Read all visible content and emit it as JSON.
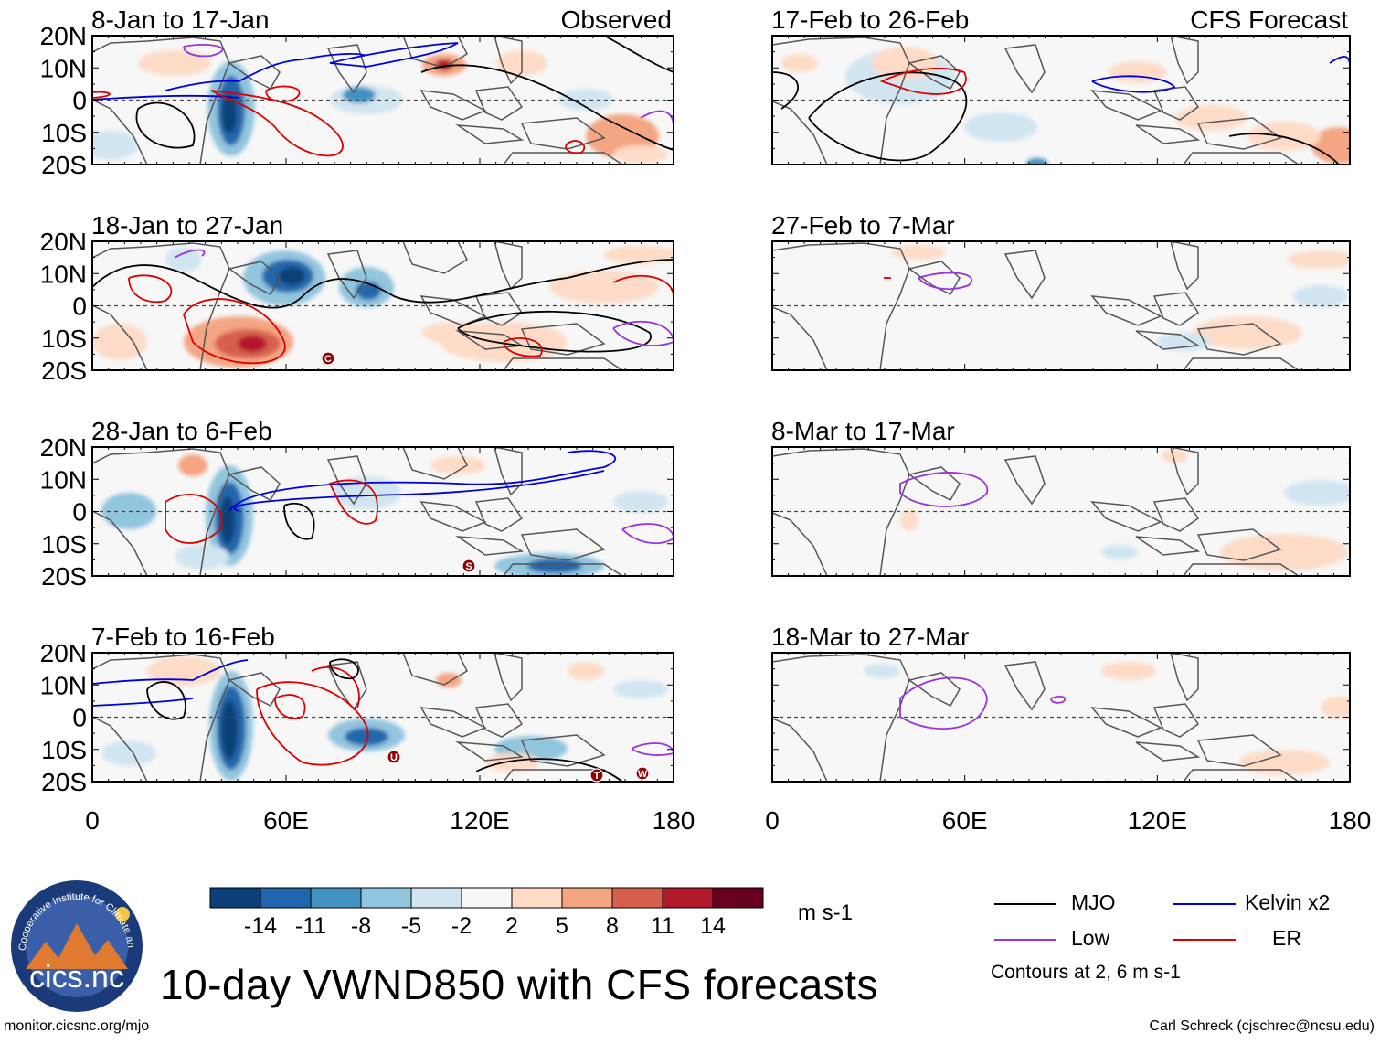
{
  "header": {
    "left_label": "Observed",
    "right_label": "CFS Forecast"
  },
  "panels": {
    "observed": [
      {
        "period": "8-Jan to 17-Jan"
      },
      {
        "period": "18-Jan to 27-Jan"
      },
      {
        "period": "28-Jan to 6-Feb"
      },
      {
        "period": "7-Feb to 16-Feb"
      }
    ],
    "forecast": [
      {
        "period": "17-Feb to 26-Feb"
      },
      {
        "period": "27-Feb to 7-Mar"
      },
      {
        "period": "8-Mar to 17-Mar"
      },
      {
        "period": "18-Mar to 27-Mar"
      }
    ]
  },
  "axes": {
    "lat_labels": [
      "20N",
      "10N",
      "0",
      "10S",
      "20S"
    ],
    "lon_labels": [
      "0",
      "60E",
      "120E",
      "180"
    ]
  },
  "storm_markers": [
    {
      "panel": 1,
      "label": "C"
    },
    {
      "panel": 2,
      "label": "S"
    },
    {
      "panel": 3,
      "label": "U"
    },
    {
      "panel": 3,
      "label": "T"
    },
    {
      "panel": 3,
      "label": "W"
    }
  ],
  "colorbar": {
    "colors": [
      "#0c3f77",
      "#2166ac",
      "#4393c3",
      "#92c5de",
      "#d1e5f0",
      "#f7f7f7",
      "#fddbc7",
      "#f4a582",
      "#d6604d",
      "#b2182b",
      "#67001f"
    ],
    "ticks": [
      "-14",
      "-11",
      "-8",
      "-5",
      "-2",
      "2",
      "5",
      "8",
      "11",
      "14"
    ],
    "units": "m s-1"
  },
  "legend": {
    "items": [
      {
        "label": "MJO",
        "color": "#000000"
      },
      {
        "label": "Kelvin x2",
        "color": "#0000dd"
      },
      {
        "label": "Low",
        "color": "#9933dd"
      },
      {
        "label": "ER",
        "color": "#dd0000"
      }
    ],
    "note": "Contours at 2, 6 m s-1"
  },
  "logo": {
    "text": "cics.nc",
    "ring_text": "Cooperative Institute for Climate and Satellites"
  },
  "title": "10-day VWND850 with CFS forecasts",
  "footer": {
    "left": "monitor.cicsnc.org/mjo",
    "right": "Carl Schreck (cjschrec@ncsu.edu)"
  }
}
